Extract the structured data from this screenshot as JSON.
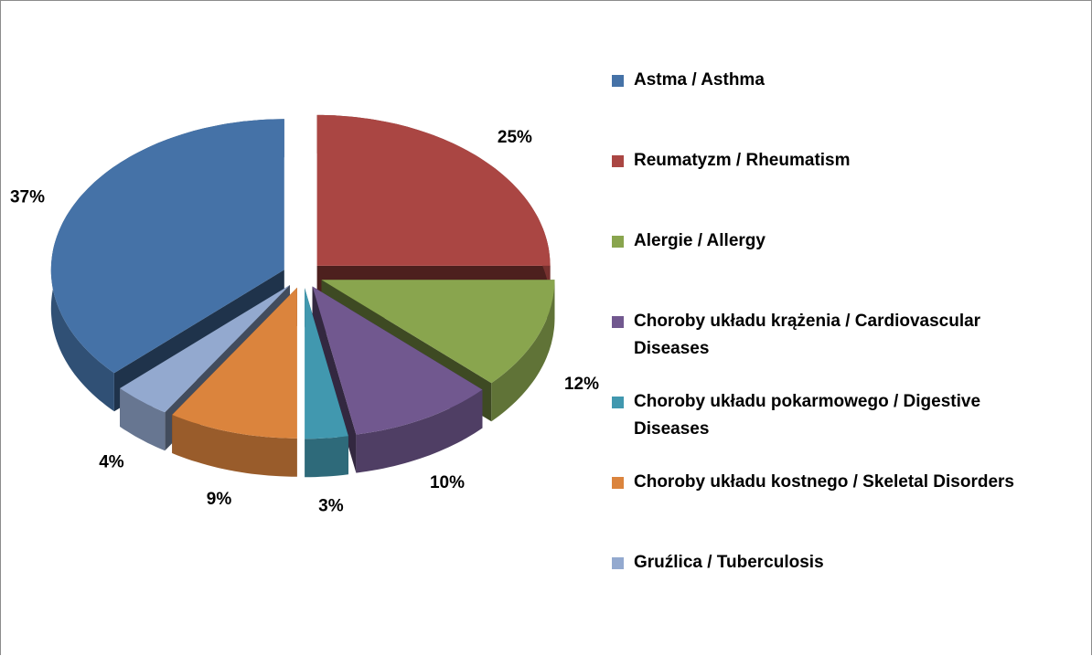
{
  "chart_data": {
    "type": "pie",
    "categories": [
      "Astma / Asthma",
      "Reumatyzm / Rheumatism",
      "Alergie / Allergy",
      "Choroby układu krążenia / Cardiovascular Diseases",
      "Choroby układu pokarmowego / Digestive Diseases",
      "Choroby układu kostnego / Skeletal Disorders",
      "Gruźlica / Tuberculosis"
    ],
    "values": [
      37,
      25,
      12,
      10,
      3,
      9,
      4
    ],
    "value_labels": [
      "37%",
      "25%",
      "12%",
      "10%",
      "3%",
      "9%",
      "4%"
    ],
    "colors": [
      "#4572a7",
      "#aa4643",
      "#89a54e",
      "#71588f",
      "#4198af",
      "#db843d",
      "#93a9cf"
    ],
    "legend": "right"
  }
}
